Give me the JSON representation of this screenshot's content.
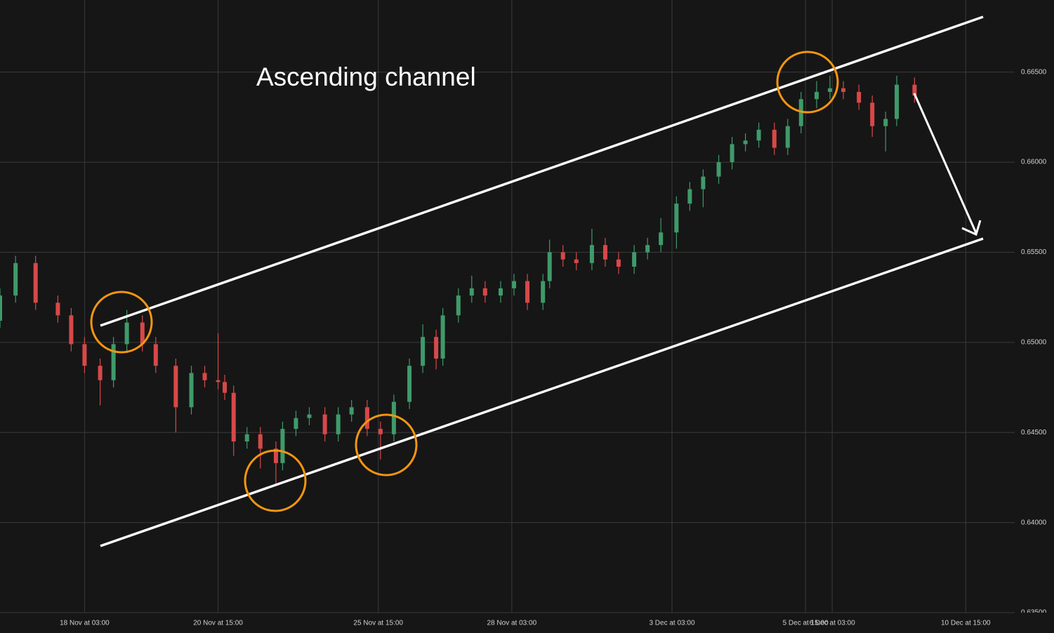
{
  "chart_data": {
    "type": "candlestick",
    "title": "Ascending channel",
    "x": [
      -38,
      -31,
      -22,
      -12,
      -6,
      0,
      7,
      13,
      19,
      26,
      32,
      41,
      48,
      54,
      60,
      63,
      67,
      73,
      79,
      86,
      89,
      95,
      101,
      108,
      114,
      120,
      127,
      133,
      139,
      146,
      152,
      158,
      161,
      168,
      174,
      180,
      187,
      193,
      199,
      206,
      209,
      215,
      221,
      228,
      234,
      240,
      247,
      253,
      259,
      266,
      272,
      278,
      285,
      291,
      297,
      303,
      310,
      316,
      322,
      329,
      335,
      341,
      348,
      354,
      360,
      365,
      373
    ],
    "open": [
      0.6512,
      0.6526,
      0.6544,
      0.6522,
      0.6515,
      0.6499,
      0.6487,
      0.6479,
      0.6499,
      0.6511,
      0.6499,
      0.6487,
      0.6464,
      0.6483,
      0.6479,
      0.6478,
      0.6472,
      0.6445,
      0.6449,
      0.6441,
      0.6433,
      0.6452,
      0.6458,
      0.646,
      0.6449,
      0.646,
      0.6464,
      0.6452,
      0.6449,
      0.6467,
      0.6487,
      0.6503,
      0.6491,
      0.6515,
      0.6526,
      0.653,
      0.6526,
      0.653,
      0.6534,
      0.6522,
      0.6534,
      0.655,
      0.6546,
      0.6544,
      0.6554,
      0.6546,
      0.6542,
      0.655,
      0.6554,
      0.6561,
      0.6577,
      0.6585,
      0.6592,
      0.66,
      0.661,
      0.6612,
      0.6618,
      0.6608,
      0.662,
      0.6635,
      0.6639,
      0.6641,
      0.6639,
      0.6633,
      0.662,
      0.6624,
      0.6643
    ],
    "high": [
      0.653,
      0.6548,
      0.6548,
      0.6526,
      0.6519,
      0.6503,
      0.6491,
      0.6503,
      0.6518,
      0.6515,
      0.6503,
      0.6491,
      0.6487,
      0.6487,
      0.6505,
      0.6482,
      0.6476,
      0.6453,
      0.6453,
      0.6445,
      0.6456,
      0.6462,
      0.6464,
      0.6464,
      0.6464,
      0.6468,
      0.6468,
      0.6456,
      0.6471,
      0.6491,
      0.651,
      0.6507,
      0.6519,
      0.653,
      0.6537,
      0.6534,
      0.6534,
      0.6538,
      0.6538,
      0.6538,
      0.6557,
      0.6554,
      0.655,
      0.6563,
      0.6558,
      0.655,
      0.6554,
      0.6558,
      0.6569,
      0.6581,
      0.6589,
      0.6596,
      0.6604,
      0.6614,
      0.6616,
      0.6622,
      0.6622,
      0.6624,
      0.6639,
      0.6645,
      0.6648,
      0.6645,
      0.6643,
      0.6637,
      0.6628,
      0.6648,
      0.6647
    ],
    "low": [
      0.6508,
      0.6522,
      0.6518,
      0.6511,
      0.6495,
      0.6483,
      0.6465,
      0.6475,
      0.6495,
      0.6495,
      0.6483,
      0.645,
      0.646,
      0.6475,
      0.6474,
      0.6468,
      0.6437,
      0.6441,
      0.643,
      0.6421,
      0.6429,
      0.6448,
      0.6454,
      0.6445,
      0.6445,
      0.6456,
      0.6448,
      0.6435,
      0.6445,
      0.6463,
      0.6483,
      0.6485,
      0.6487,
      0.6511,
      0.6522,
      0.6522,
      0.6522,
      0.6526,
      0.6518,
      0.6518,
      0.653,
      0.6542,
      0.654,
      0.654,
      0.6542,
      0.6538,
      0.6538,
      0.6546,
      0.655,
      0.6552,
      0.6573,
      0.6575,
      0.6588,
      0.6596,
      0.6606,
      0.6608,
      0.6604,
      0.6604,
      0.6616,
      0.663,
      0.6635,
      0.6635,
      0.6629,
      0.6614,
      0.6606,
      0.662,
      0.6633
    ],
    "close": [
      0.6526,
      0.6544,
      0.6522,
      0.6515,
      0.6499,
      0.6487,
      0.6479,
      0.6499,
      0.6511,
      0.6499,
      0.6487,
      0.6464,
      0.6483,
      0.6479,
      0.6478,
      0.6472,
      0.6445,
      0.6449,
      0.6441,
      0.6433,
      0.6452,
      0.6458,
      0.646,
      0.6449,
      0.646,
      0.6464,
      0.6452,
      0.6449,
      0.6467,
      0.6487,
      0.6503,
      0.6491,
      0.6515,
      0.6526,
      0.653,
      0.6526,
      0.653,
      0.6534,
      0.6522,
      0.6534,
      0.655,
      0.6546,
      0.6544,
      0.6554,
      0.6546,
      0.6542,
      0.655,
      0.6554,
      0.6561,
      0.6577,
      0.6585,
      0.6592,
      0.66,
      0.661,
      0.6612,
      0.6618,
      0.6608,
      0.662,
      0.6635,
      0.6639,
      0.6641,
      0.6639,
      0.6633,
      0.662,
      0.6624,
      0.6643,
      0.6637
    ],
    "up_color": "#3f9a6a",
    "down_color": "#d84848",
    "xlim": [
      -38,
      418
    ],
    "ylim": [
      0.635,
      0.669
    ],
    "xticks": [
      {
        "value": 0,
        "label": "18 Nov at 03:00"
      },
      {
        "value": 60,
        "label": "20 Nov at 15:00"
      },
      {
        "value": 132,
        "label": "25 Nov at 15:00"
      },
      {
        "value": 192,
        "label": "28 Nov at 03:00"
      },
      {
        "value": 264,
        "label": "3 Dec at 03:00"
      },
      {
        "value": 324,
        "label": "5 Dec at 15:00"
      },
      {
        "value": 336,
        "label": "6 Dec at 03:00"
      },
      {
        "value": 396,
        "label": "10 Dec at 15:00"
      }
    ],
    "yticks": [
      {
        "value": 0.635,
        "label": "0.63500"
      },
      {
        "value": 0.64,
        "label": "0.64000"
      },
      {
        "value": 0.645,
        "label": "0.64500"
      },
      {
        "value": 0.65,
        "label": "0.65000"
      },
      {
        "value": 0.655,
        "label": "0.65500"
      },
      {
        "value": 0.66,
        "label": "0.66000"
      },
      {
        "value": 0.665,
        "label": "0.66500"
      }
    ],
    "grid": true
  }
}
